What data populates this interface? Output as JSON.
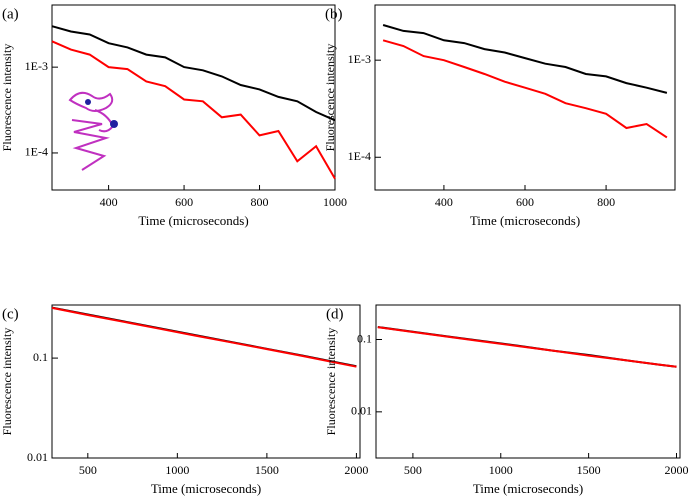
{
  "chart_data": [
    {
      "type": "line",
      "panel_label": "(a)",
      "x_label": "Time (microseconds)",
      "y_label": "Fluorescence intensity",
      "log_y": true,
      "xlim": [
        250,
        1000
      ],
      "ylim": [
        3.7e-05,
        0.0053
      ],
      "xticks": [
        400,
        600,
        800,
        1000
      ],
      "yticks": [
        {
          "value": 0.0001,
          "label": "1E-4"
        },
        {
          "value": 0.001,
          "label": "1E-3"
        }
      ],
      "x": [
        250,
        300,
        350,
        400,
        450,
        500,
        550,
        600,
        650,
        700,
        750,
        800,
        850,
        900,
        950,
        1000
      ],
      "series": [
        {
          "color": "#000000",
          "values": [
            0.003,
            0.0026,
            0.0024,
            0.0019,
            0.0017,
            0.0014,
            0.0013,
            0.001,
            0.00092,
            0.00078,
            0.00062,
            0.00055,
            0.00045,
            0.0004,
            0.0003,
            0.00024
          ]
        },
        {
          "color": "#ff0000",
          "values": [
            0.002,
            0.0016,
            0.0014,
            0.001,
            0.00095,
            0.00068,
            0.0006,
            0.00042,
            0.0004,
            0.00026,
            0.00028,
            0.00016,
            0.00018,
            8e-05,
            0.00012,
            5e-05
          ]
        }
      ]
    },
    {
      "type": "line",
      "panel_label": "(b)",
      "x_label": "Time (microseconds)",
      "y_label": "Fluorescence intensity",
      "log_y": true,
      "xlim": [
        230,
        970
      ],
      "ylim": [
        4.6e-05,
        0.0037
      ],
      "xticks": [
        400,
        600,
        800
      ],
      "yticks": [
        {
          "value": 0.0001,
          "label": "1E-4"
        },
        {
          "value": 0.001,
          "label": "1E-3"
        }
      ],
      "x": [
        250,
        300,
        350,
        400,
        450,
        500,
        550,
        600,
        650,
        700,
        750,
        800,
        850,
        900,
        950
      ],
      "series": [
        {
          "color": "#000000",
          "values": [
            0.0023,
            0.002,
            0.0019,
            0.0016,
            0.0015,
            0.0013,
            0.0012,
            0.00105,
            0.00092,
            0.00085,
            0.00072,
            0.00068,
            0.00058,
            0.00052,
            0.00046
          ]
        },
        {
          "color": "#ff0000",
          "values": [
            0.0016,
            0.0014,
            0.0011,
            0.001,
            0.00085,
            0.00072,
            0.0006,
            0.00052,
            0.00045,
            0.00036,
            0.00032,
            0.00028,
            0.0002,
            0.00022,
            0.00016
          ]
        }
      ]
    },
    {
      "type": "line",
      "panel_label": "(c)",
      "x_label": "Time (microseconds)",
      "y_label": "Fluorescence intensity",
      "log_y": true,
      "xlim": [
        300,
        2020
      ],
      "ylim": [
        0.01,
        0.34
      ],
      "xticks": [
        500,
        1000,
        1500,
        2000
      ],
      "yticks": [
        0.01,
        0.1
      ],
      "x": [
        300,
        500,
        700,
        900,
        1100,
        1300,
        1500,
        1700,
        1900,
        2000
      ],
      "series": [
        {
          "color": "#000000",
          "values": [
            0.32,
            0.273,
            0.233,
            0.199,
            0.17,
            0.145,
            0.124,
            0.106,
            0.09,
            0.083
          ]
        },
        {
          "color": "#ff0000",
          "values": [
            0.318,
            0.27,
            0.231,
            0.197,
            0.168,
            0.144,
            0.123,
            0.105,
            0.089,
            0.082
          ]
        }
      ]
    },
    {
      "type": "line",
      "panel_label": "(d)",
      "x_label": "Time (microseconds)",
      "y_label": "Fluorescence intensity",
      "log_y": true,
      "xlim": [
        290,
        2020
      ],
      "ylim": [
        0.0023,
        0.3
      ],
      "xticks": [
        500,
        1000,
        1500,
        2000
      ],
      "yticks": [
        0.01,
        0.1
      ],
      "x": [
        300,
        500,
        700,
        900,
        1100,
        1300,
        1500,
        1700,
        1900,
        2000
      ],
      "series": [
        {
          "color": "#000000",
          "values": [
            0.149,
            0.128,
            0.11,
            0.095,
            0.082,
            0.07,
            0.061,
            0.052,
            0.045,
            0.042
          ]
        },
        {
          "color": "#ff0000",
          "values": [
            0.148,
            0.127,
            0.109,
            0.094,
            0.081,
            0.07,
            0.06,
            0.052,
            0.045,
            0.042
          ]
        }
      ]
    }
  ]
}
